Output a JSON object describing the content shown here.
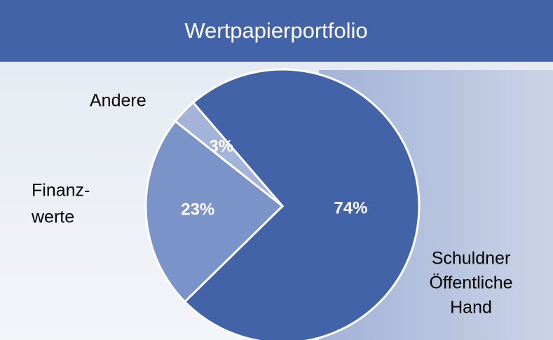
{
  "chart_data": {
    "type": "pie",
    "title": "Wertpapierportfolio",
    "categories": [
      [
        "Schuldner",
        "Öffentliche",
        "Hand"
      ],
      [
        "Finanz-",
        "werte"
      ],
      [
        "Andere"
      ]
    ],
    "values": [
      74,
      23,
      3
    ],
    "value_labels": [
      "74%",
      "23%",
      "3%"
    ],
    "colors": [
      "#4263a8",
      "#7a93c8",
      "#a3b4d8"
    ]
  }
}
